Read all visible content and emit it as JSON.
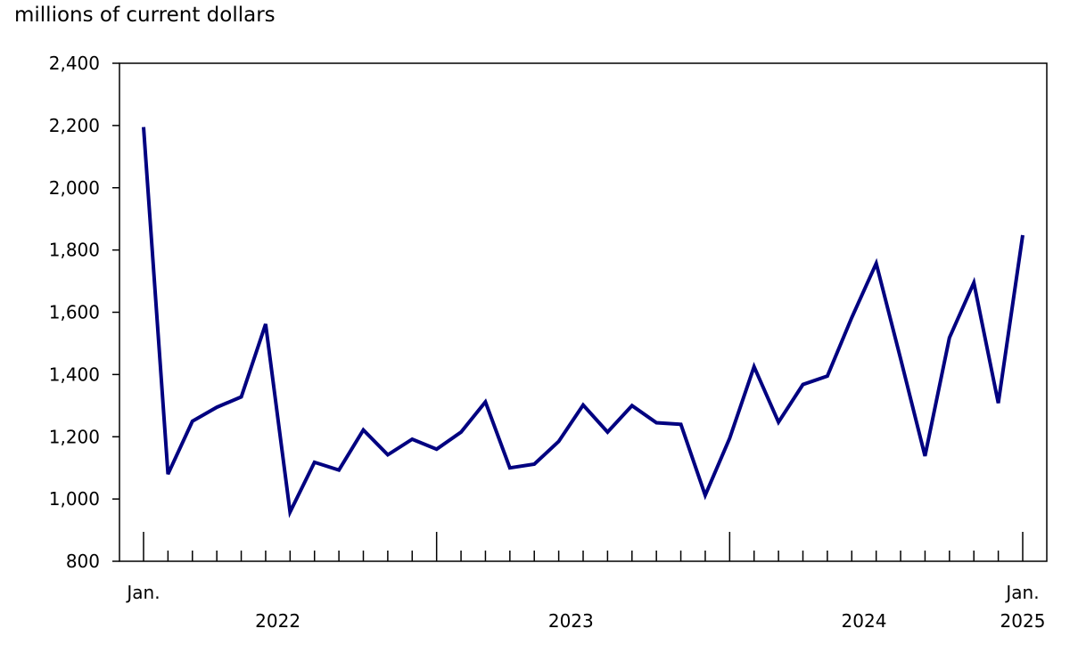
{
  "chart_data": {
    "type": "line",
    "title": "",
    "ylabel": "millions of current dollars",
    "xlabel": "",
    "ylim": [
      800,
      2400
    ],
    "yticks": [
      800,
      1000,
      1200,
      1400,
      1600,
      1800,
      2000,
      2200,
      2400
    ],
    "ytick_labels": [
      "800",
      "1,000",
      "1,200",
      "1,400",
      "1,600",
      "1,800",
      "2,000",
      "2,200",
      "2,400"
    ],
    "grid": false,
    "line_color": "#000080",
    "x": [
      "2022-01",
      "2022-02",
      "2022-03",
      "2022-04",
      "2022-05",
      "2022-06",
      "2022-07",
      "2022-08",
      "2022-09",
      "2022-10",
      "2022-11",
      "2022-12",
      "2023-01",
      "2023-02",
      "2023-03",
      "2023-04",
      "2023-05",
      "2023-06",
      "2023-07",
      "2023-08",
      "2023-09",
      "2023-10",
      "2023-11",
      "2023-12",
      "2024-01",
      "2024-02",
      "2024-03",
      "2024-04",
      "2024-05",
      "2024-06",
      "2024-07",
      "2024-08",
      "2024-09",
      "2024-10",
      "2024-11",
      "2024-12",
      "2025-01"
    ],
    "series": [
      {
        "values": [
          2195,
          1080,
          1250,
          1295,
          1328,
          1562,
          958,
          1118,
          1093,
          1222,
          1142,
          1192,
          1160,
          1215,
          1312,
          1100,
          1112,
          1185,
          1302,
          1215,
          1300,
          1245,
          1240,
          1012,
          1195,
          1425,
          1247,
          1368,
          1395,
          1583,
          1757,
          1450,
          1138,
          1518,
          1695,
          1308,
          1848
        ]
      }
    ],
    "x_tick_labels": [
      {
        "index": 0,
        "text": "Jan."
      },
      {
        "index": 36,
        "text": "Jan."
      }
    ],
    "year_labels": [
      {
        "start": 0,
        "text": "2022"
      },
      {
        "start": 12,
        "text": "2023"
      },
      {
        "start": 24,
        "text": "2024"
      },
      {
        "start": 36,
        "text": "2025"
      }
    ]
  }
}
